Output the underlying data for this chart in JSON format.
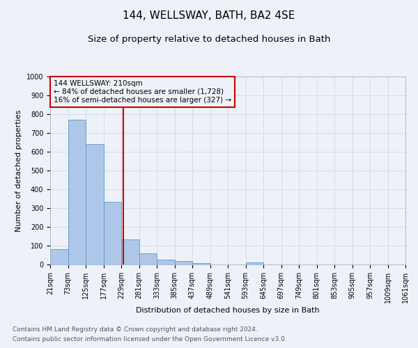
{
  "title": "144, WELLSWAY, BATH, BA2 4SE",
  "subtitle": "Size of property relative to detached houses in Bath",
  "xlabel": "Distribution of detached houses by size in Bath",
  "ylabel": "Number of detached properties",
  "annotation_line1": "144 WELLSWAY: 210sqm",
  "annotation_line2": "← 84% of detached houses are smaller (1,728)",
  "annotation_line3": "16% of semi-detached houses are larger (327) →",
  "footnote1": "Contains HM Land Registry data © Crown copyright and database right 2024.",
  "footnote2": "Contains public sector information licensed under the Open Government Licence v3.0.",
  "bar_values": [
    83,
    770,
    641,
    335,
    133,
    60,
    25,
    20,
    9,
    0,
    0,
    10,
    0,
    0,
    0,
    0,
    0,
    0,
    0,
    0
  ],
  "bin_labels": [
    "21sqm",
    "73sqm",
    "125sqm",
    "177sqm",
    "229sqm",
    "281sqm",
    "333sqm",
    "385sqm",
    "437sqm",
    "489sqm",
    "541sqm",
    "593sqm",
    "645sqm",
    "697sqm",
    "749sqm",
    "801sqm",
    "853sqm",
    "905sqm",
    "957sqm",
    "1009sqm",
    "1061sqm"
  ],
  "bar_color": "#aec6e8",
  "bar_edge_color": "#5b9bd5",
  "vline_color": "#cc0000",
  "annotation_box_color": "#cc0000",
  "ylim": [
    0,
    1000
  ],
  "yticks": [
    0,
    100,
    200,
    300,
    400,
    500,
    600,
    700,
    800,
    900,
    1000
  ],
  "grid_color": "#d0d8e8",
  "background_color": "#eef2f8",
  "title_fontsize": 11,
  "subtitle_fontsize": 9.5,
  "axis_label_fontsize": 8,
  "tick_fontsize": 7,
  "annotation_fontsize": 7.5,
  "footnote_fontsize": 6.5
}
